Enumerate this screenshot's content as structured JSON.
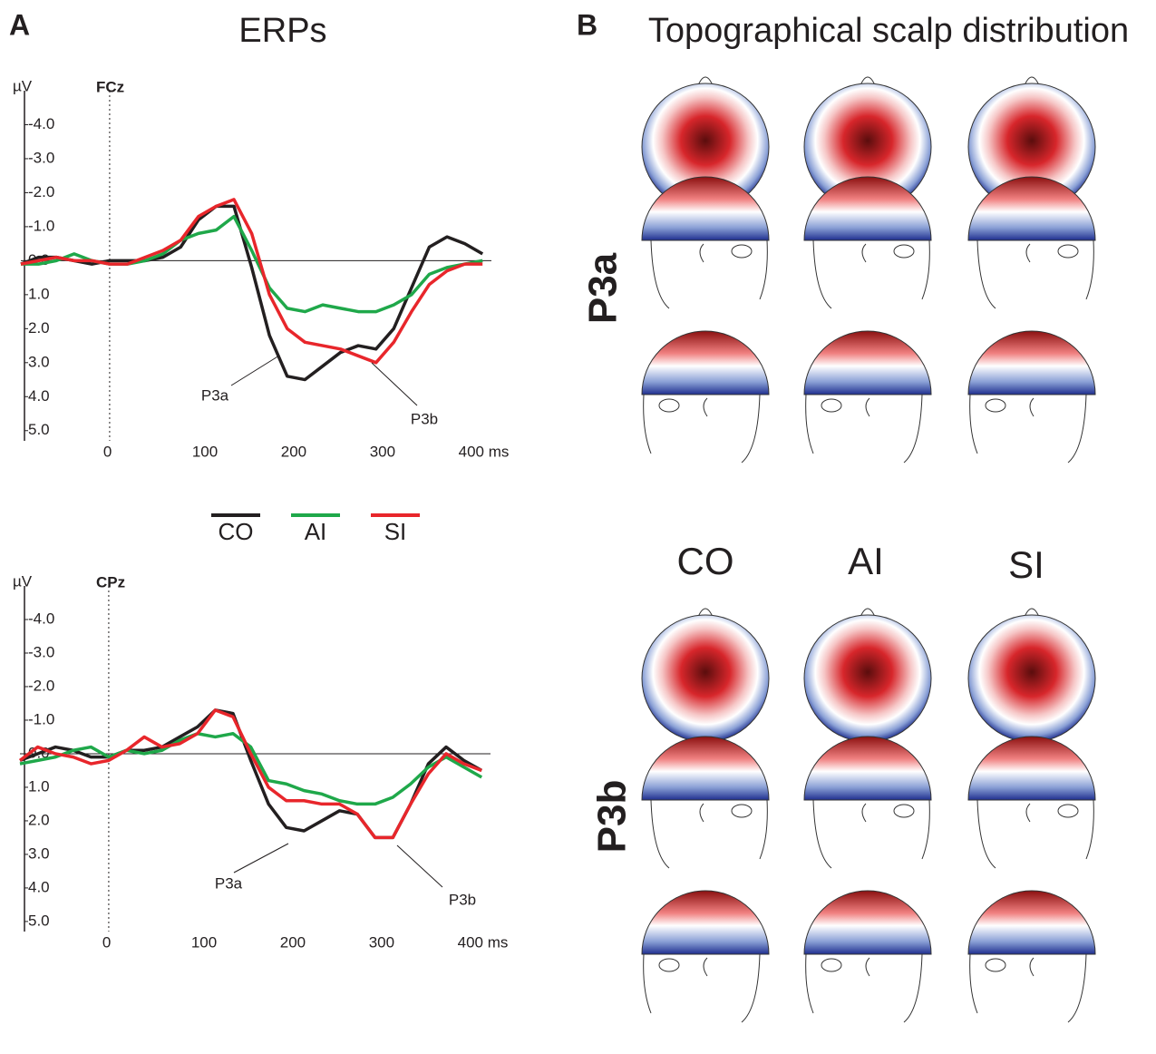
{
  "chart_data": [
    {
      "type": "line",
      "channel": "FCz",
      "unit": "µV",
      "y_inverted": true,
      "xlim": [
        -100,
        430
      ],
      "ylim": [
        -5,
        5.3
      ],
      "xticks": [
        0,
        100,
        200,
        300,
        {
          "value": 400,
          "label": "400 ms"
        }
      ],
      "yticks": [
        {
          "value": -4,
          "label": "-4.0"
        },
        {
          "value": -3,
          "label": "-3.0"
        },
        {
          "value": -2,
          "label": "-2.0"
        },
        {
          "value": -1,
          "label": "-1.0"
        },
        {
          "value": 0,
          "label": "0.0"
        },
        {
          "value": 1,
          "label": "1.0"
        },
        {
          "value": 2,
          "label": "2.0"
        },
        {
          "value": 3,
          "label": "3.0"
        },
        {
          "value": 4,
          "label": "4.0"
        },
        {
          "value": 5,
          "label": "5.0"
        }
      ],
      "x": [
        -100,
        -80,
        -60,
        -40,
        -20,
        0,
        20,
        40,
        60,
        80,
        100,
        120,
        140,
        160,
        180,
        200,
        220,
        240,
        260,
        280,
        300,
        320,
        340,
        360,
        380,
        400,
        420
      ],
      "series": [
        {
          "name": "CO",
          "color": "#231f20",
          "values": [
            0.1,
            -0.1,
            -0.1,
            0,
            0.1,
            0,
            0,
            0,
            -0.1,
            -0.4,
            -1.2,
            -1.6,
            -1.6,
            0.2,
            2.2,
            3.4,
            3.5,
            3.1,
            2.7,
            2.5,
            2.6,
            2.0,
            0.8,
            -0.4,
            -0.7,
            -0.5,
            -0.2
          ]
        },
        {
          "name": "AI",
          "color": "#1fa84a",
          "values": [
            0.1,
            0.1,
            0,
            -0.2,
            0,
            0.1,
            0.1,
            0,
            -0.2,
            -0.6,
            -0.8,
            -0.9,
            -1.3,
            -0.3,
            0.8,
            1.4,
            1.5,
            1.3,
            1.4,
            1.5,
            1.5,
            1.3,
            1.0,
            0.4,
            0.2,
            0.1,
            0
          ]
        },
        {
          "name": "SI",
          "color": "#e8262b",
          "values": [
            0.1,
            0,
            -0.1,
            0,
            0,
            0.1,
            0.1,
            -0.1,
            -0.3,
            -0.6,
            -1.3,
            -1.6,
            -1.8,
            -0.8,
            1.0,
            2.0,
            2.4,
            2.5,
            2.6,
            2.8,
            3.0,
            2.4,
            1.5,
            0.7,
            0.3,
            0.1,
            0.1
          ]
        }
      ],
      "annotations": [
        "P3a",
        "P3b"
      ]
    },
    {
      "type": "line",
      "channel": "CPz",
      "unit": "µV",
      "y_inverted": true,
      "xlim": [
        -100,
        430
      ],
      "ylim": [
        -5,
        5.3
      ],
      "xticks": [
        0,
        100,
        200,
        300,
        {
          "value": 400,
          "label": "400 ms"
        }
      ],
      "yticks": [
        {
          "value": -4,
          "label": "-4.0"
        },
        {
          "value": -3,
          "label": "-3.0"
        },
        {
          "value": -2,
          "label": "-2.0"
        },
        {
          "value": -1,
          "label": "-1.0"
        },
        {
          "value": 0,
          "label": "0.0"
        },
        {
          "value": 1,
          "label": "1.0"
        },
        {
          "value": 2,
          "label": "2.0"
        },
        {
          "value": 3,
          "label": "3.0"
        },
        {
          "value": 4,
          "label": "4.0"
        },
        {
          "value": 5,
          "label": "5.0"
        }
      ],
      "x": [
        -100,
        -80,
        -60,
        -40,
        -20,
        0,
        20,
        40,
        60,
        80,
        100,
        120,
        140,
        160,
        180,
        200,
        220,
        240,
        260,
        280,
        300,
        320,
        340,
        360,
        380,
        400,
        420
      ],
      "series": [
        {
          "color": "#231f20",
          "values": [
            0.2,
            0,
            -0.2,
            -0.1,
            0.1,
            0.1,
            -0.1,
            -0.1,
            -0.2,
            -0.5,
            -0.8,
            -1.3,
            -1.2,
            0.2,
            1.5,
            2.2,
            2.3,
            2.0,
            1.7,
            1.8,
            2.5,
            2.5,
            1.5,
            0.3,
            -0.2,
            0.2,
            0.5
          ]
        },
        {
          "color": "#1fa84a",
          "values": [
            0.3,
            0.2,
            0.1,
            -0.1,
            -0.2,
            0.1,
            -0.1,
            0,
            -0.1,
            -0.4,
            -0.6,
            -0.5,
            -0.6,
            -0.2,
            0.8,
            0.9,
            1.1,
            1.2,
            1.4,
            1.5,
            1.5,
            1.3,
            0.9,
            0.4,
            0.1,
            0.4,
            0.7
          ]
        },
        {
          "color": "#e8262b",
          "values": [
            0.2,
            -0.2,
            0,
            0.1,
            0.3,
            0.2,
            -0.1,
            -0.5,
            -0.2,
            -0.3,
            -0.6,
            -1.3,
            -1.1,
            0,
            1.0,
            1.4,
            1.4,
            1.5,
            1.5,
            1.8,
            2.5,
            2.5,
            1.5,
            0.6,
            0,
            0.3,
            0.5
          ]
        }
      ],
      "annotations": [
        "P3a",
        "P3b"
      ]
    }
  ],
  "panels": {
    "a_label": "A",
    "a_title": "ERPs",
    "b_label": "B",
    "b_title": "Topographical scalp distribution",
    "conditions": [
      "CO",
      "AI",
      "SI"
    ],
    "rows": [
      "P3a",
      "P3b"
    ]
  }
}
